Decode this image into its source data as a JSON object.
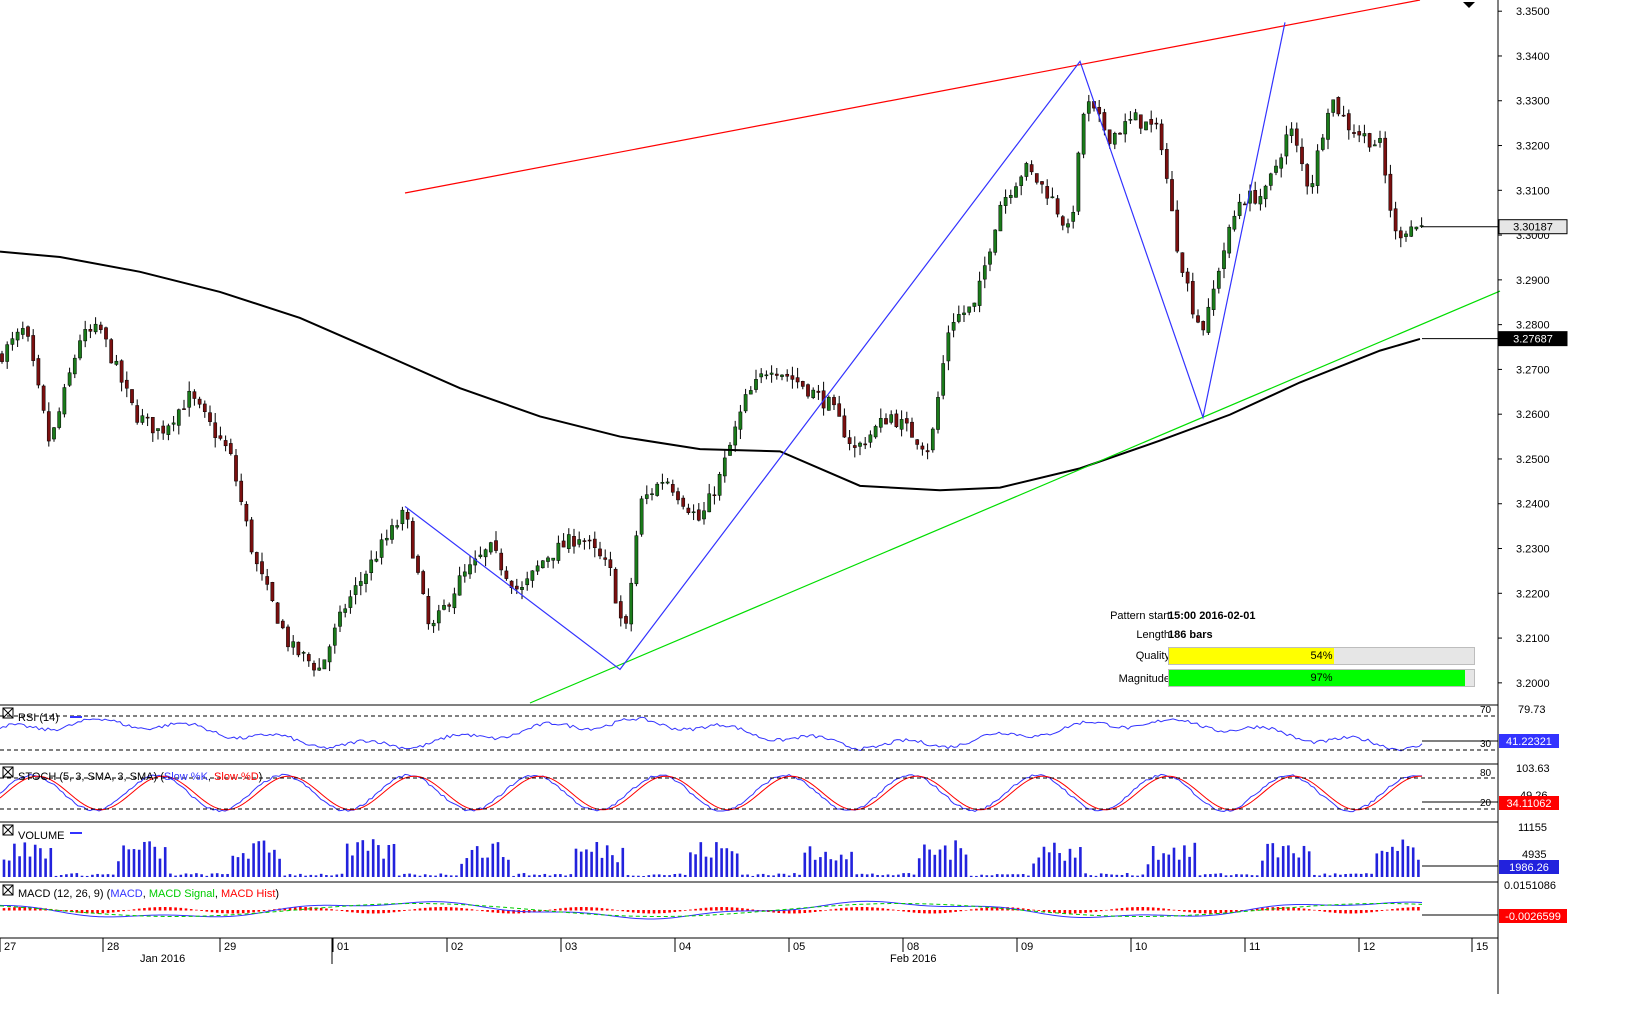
{
  "chart_data": {
    "type": "candlestick",
    "instrument_current_price": "3.30187",
    "moving_average_value": "3.27687",
    "price_axis": {
      "ylim": [
        3.1955,
        3.3525
      ],
      "ticks": [
        "3.3500",
        "3.3400",
        "3.3300",
        "3.3200",
        "3.3100",
        "3.3000",
        "3.2900",
        "3.2800",
        "3.2700",
        "3.2600",
        "3.2500",
        "3.2400",
        "3.2300",
        "3.2200",
        "3.2100",
        "3.2000"
      ]
    },
    "x_axis": {
      "day_labels": [
        "27",
        "28",
        "29",
        "01",
        "02",
        "03",
        "04",
        "05",
        "08",
        "09",
        "10",
        "11",
        "12",
        "15"
      ],
      "month_labels": [
        "Jan 2016",
        "Feb 2016"
      ]
    },
    "channel": {
      "resistance_color": "#ff0000",
      "support_color": "#00dd00",
      "resistance": [
        [
          405,
          3.3094
        ],
        [
          1420,
          3.3525
        ]
      ],
      "support": [
        [
          530,
          3.1955
        ],
        [
          1500,
          3.2875
        ]
      ]
    },
    "pattern_zigzag": {
      "color": "#3333ff",
      "points": [
        [
          405,
          3.2394
        ],
        [
          620,
          3.203
        ],
        [
          1080,
          3.3388
        ],
        [
          1203,
          3.2593
        ],
        [
          1285,
          3.3475
        ]
      ]
    },
    "moving_average": {
      "color": "#000000",
      "points": [
        [
          0,
          3.2963
        ],
        [
          60,
          3.2951
        ],
        [
          140,
          3.2918
        ],
        [
          220,
          3.2873
        ],
        [
          300,
          3.2815
        ],
        [
          380,
          3.2737
        ],
        [
          460,
          3.2658
        ],
        [
          540,
          3.2595
        ],
        [
          620,
          3.255
        ],
        [
          700,
          3.2522
        ],
        [
          780,
          3.2517
        ],
        [
          860,
          3.244
        ],
        [
          940,
          3.243
        ],
        [
          1000,
          3.2436
        ],
        [
          1080,
          3.2479
        ],
        [
          1160,
          3.2541
        ],
        [
          1230,
          3.2599
        ],
        [
          1300,
          3.2671
        ],
        [
          1380,
          3.2742
        ],
        [
          1420,
          3.2768
        ]
      ]
    },
    "candles_anchor_close": [
      [
        0,
        3.273
      ],
      [
        25,
        3.279
      ],
      [
        50,
        3.253
      ],
      [
        80,
        3.277
      ],
      [
        100,
        3.279
      ],
      [
        135,
        3.26
      ],
      [
        160,
        3.256
      ],
      [
        190,
        3.264
      ],
      [
        230,
        3.251
      ],
      [
        255,
        3.227
      ],
      [
        290,
        3.208
      ],
      [
        320,
        3.203
      ],
      [
        345,
        3.217
      ],
      [
        380,
        3.23
      ],
      [
        405,
        3.238
      ],
      [
        430,
        3.211
      ],
      [
        460,
        3.223
      ],
      [
        490,
        3.23
      ],
      [
        520,
        3.22
      ],
      [
        545,
        3.228
      ],
      [
        580,
        3.233
      ],
      [
        610,
        3.225
      ],
      [
        625,
        3.21
      ],
      [
        640,
        3.24
      ],
      [
        665,
        3.246
      ],
      [
        700,
        3.236
      ],
      [
        720,
        3.246
      ],
      [
        745,
        3.263
      ],
      [
        770,
        3.271
      ],
      [
        800,
        3.267
      ],
      [
        830,
        3.262
      ],
      [
        855,
        3.252
      ],
      [
        890,
        3.26
      ],
      [
        930,
        3.252
      ],
      [
        950,
        3.281
      ],
      [
        975,
        3.284
      ],
      [
        1000,
        3.307
      ],
      [
        1025,
        3.315
      ],
      [
        1050,
        3.309
      ],
      [
        1070,
        3.3
      ],
      [
        1085,
        3.33
      ],
      [
        1110,
        3.322
      ],
      [
        1135,
        3.326
      ],
      [
        1160,
        3.323
      ],
      [
        1175,
        3.3
      ],
      [
        1195,
        3.282
      ],
      [
        1205,
        3.279
      ],
      [
        1220,
        3.294
      ],
      [
        1240,
        3.308
      ],
      [
        1265,
        3.309
      ],
      [
        1290,
        3.324
      ],
      [
        1310,
        3.31
      ],
      [
        1330,
        3.331
      ],
      [
        1350,
        3.324
      ],
      [
        1380,
        3.32
      ],
      [
        1395,
        3.3
      ],
      [
        1410,
        3.302
      ],
      [
        1422,
        3.3019
      ]
    ],
    "indicators": {
      "rsi": {
        "label": "RSI (14)",
        "value": "41.22321",
        "levels": [
          "70",
          "30"
        ],
        "axis_top": "79.73"
      },
      "stoch": {
        "label_prefix": "STOCH (5, 3, SMA, 3, SMA) (",
        "k_label": "Slow %K",
        "sep": ", ",
        "d_label": "Slow %D",
        "label_suffix": ")",
        "value": "34.11062",
        "levels": [
          "80",
          "20"
        ],
        "axis_top": "103.63",
        "axis_mid": "49.26"
      },
      "volume": {
        "label": "VOLUME",
        "value": "1986.26",
        "axis_top": "11155",
        "axis_mid": "4935"
      },
      "macd": {
        "label_prefix": "MACD (12, 26, 9) (",
        "macd_label": "MACD",
        "sep": ", ",
        "signal_label": "MACD Signal",
        "hist_label": "MACD Hist",
        "label_suffix": ")",
        "value": "-0.0026599",
        "axis_top": "0.0151086"
      }
    }
  },
  "pattern_info": {
    "pattern_start_label": "Pattern start",
    "pattern_start_value": "15:00 2016-02-01",
    "length_label": "Length",
    "length_value": "186 bars",
    "quality_label": "Quality",
    "quality_value": "54%",
    "quality_fraction": 0.54,
    "quality_color": "#ffff00",
    "magnitude_label": "Magnitude",
    "magnitude_value": "97%",
    "magnitude_fraction": 0.97,
    "magnitude_color": "#00ff00"
  }
}
